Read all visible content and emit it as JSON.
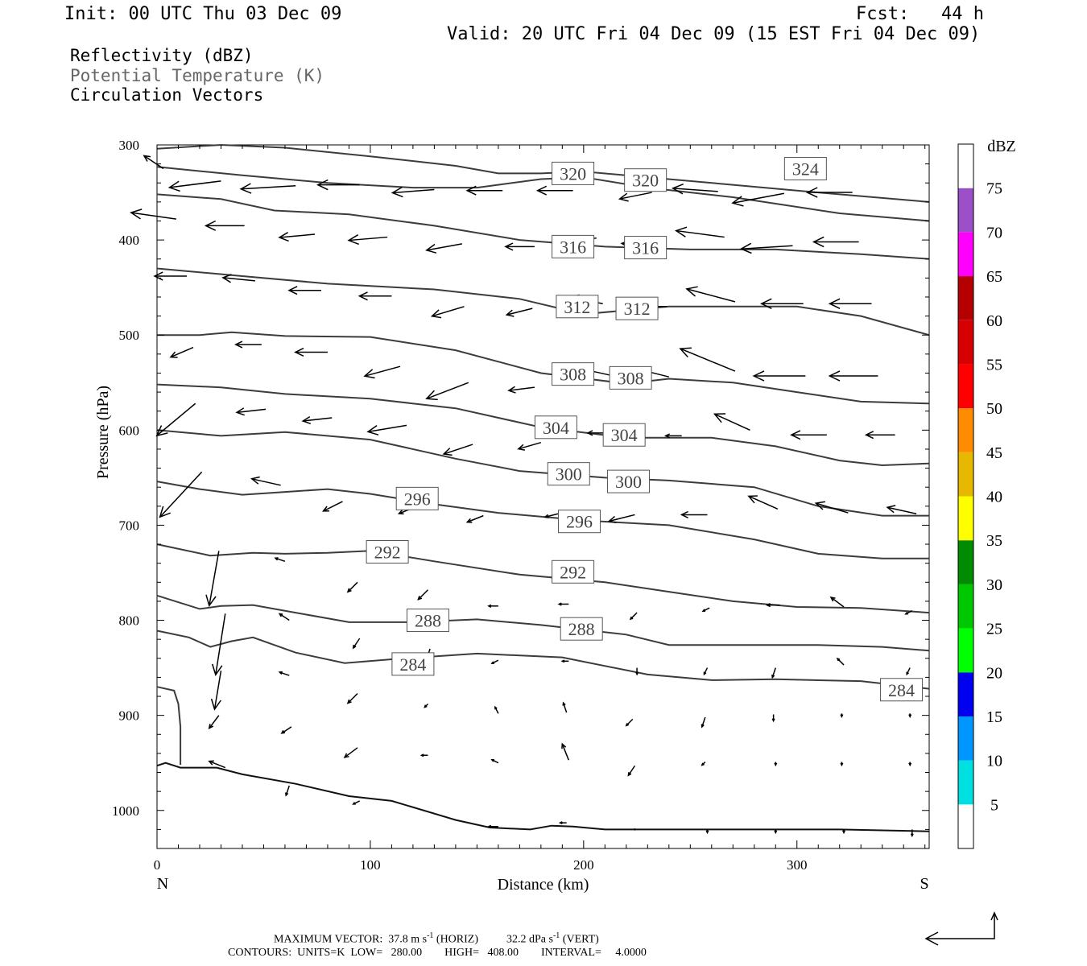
{
  "header": {
    "init": "Init: 00 UTC Thu 03 Dec 09",
    "fcst": "Fcst:   44 h",
    "valid": "Valid: 20 UTC Fri 04 Dec 09 (15 EST Fri 04 Dec 09)"
  },
  "variables": [
    "Reflectivity (dBZ)",
    "Potential Temperature (K)",
    "Circulation Vectors"
  ],
  "footer": {
    "line1_prefix": "MAXIMUM VECTOR:  37.8 m s",
    "line1_mid": " (HORIZ)          32.2 dPa s",
    "line1_suffix": " (VERT)",
    "exp": "-1",
    "line2": "CONTOURS:  UNITS=K  LOW=   280.00        HIGH=   408.00        INTERVAL=     4.0000"
  },
  "colorbar": {
    "title": "dBZ",
    "labels": [
      "5",
      "10",
      "15",
      "20",
      "25",
      "30",
      "35",
      "40",
      "45",
      "50",
      "55",
      "60",
      "65",
      "70",
      "75"
    ],
    "colors": [
      "#ffffff",
      "#00e0e0",
      "#0096ff",
      "#0000f0",
      "#00ff00",
      "#00c800",
      "#008c00",
      "#ffff00",
      "#e6b800",
      "#ff8c00",
      "#ff0000",
      "#d60000",
      "#b40000",
      "#ff00ff",
      "#9b50c8",
      "#ffffff"
    ]
  },
  "chart_data": {
    "type": "cross-section",
    "xlabel": "Distance (km)",
    "ylabel": "Pressure (hPa)",
    "xlim": [
      0,
      362
    ],
    "ylim": [
      1040,
      300
    ],
    "x_ticks": [
      "0",
      "100",
      "200",
      "300"
    ],
    "y_ticks": [
      "300",
      "400",
      "500",
      "600",
      "700",
      "800",
      "900",
      "1000"
    ],
    "x_ends": {
      "left": "N",
      "right": "S"
    },
    "contour_labels": [
      {
        "text": "320",
        "x": 195,
        "p": 330
      },
      {
        "text": "320",
        "x": 229,
        "p": 337
      },
      {
        "text": "324",
        "x": 304,
        "p": 325
      },
      {
        "text": "316",
        "x": 195,
        "p": 407
      },
      {
        "text": "316",
        "x": 229,
        "p": 408
      },
      {
        "text": "312",
        "x": 197,
        "p": 470
      },
      {
        "text": "312",
        "x": 225,
        "p": 472
      },
      {
        "text": "308",
        "x": 195,
        "p": 541
      },
      {
        "text": "308",
        "x": 222,
        "p": 545
      },
      {
        "text": "304",
        "x": 187,
        "p": 597
      },
      {
        "text": "304",
        "x": 219,
        "p": 605
      },
      {
        "text": "300",
        "x": 193,
        "p": 646
      },
      {
        "text": "300",
        "x": 221,
        "p": 654
      },
      {
        "text": "296",
        "x": 122,
        "p": 672
      },
      {
        "text": "296",
        "x": 198,
        "p": 696
      },
      {
        "text": "292",
        "x": 108,
        "p": 728
      },
      {
        "text": "292",
        "x": 195,
        "p": 749
      },
      {
        "text": "288",
        "x": 127,
        "p": 800
      },
      {
        "text": "288",
        "x": 199,
        "p": 809
      },
      {
        "text": "284",
        "x": 120,
        "p": 846
      },
      {
        "text": "284",
        "x": 349,
        "p": 873
      }
    ],
    "contours": [
      [
        [
          0,
          304
        ],
        [
          30,
          300
        ],
        [
          60,
          303
        ],
        [
          100,
          312
        ],
        [
          140,
          322
        ],
        [
          160,
          330
        ],
        [
          180,
          330
        ],
        [
          200,
          328
        ],
        [
          230,
          334
        ],
        [
          270,
          342
        ],
        [
          310,
          350
        ],
        [
          362,
          360
        ]
      ],
      [
        [
          0,
          323
        ],
        [
          40,
          332
        ],
        [
          80,
          340
        ],
        [
          120,
          345
        ],
        [
          150,
          345
        ],
        [
          180,
          336
        ],
        [
          200,
          334
        ],
        [
          230,
          345
        ],
        [
          270,
          355
        ],
        [
          320,
          372
        ],
        [
          362,
          380
        ]
      ],
      [
        [
          0,
          352
        ],
        [
          30,
          357
        ],
        [
          55,
          369
        ],
        [
          90,
          373
        ],
        [
          130,
          385
        ],
        [
          170,
          400
        ],
        [
          210,
          407
        ],
        [
          250,
          410
        ],
        [
          290,
          410
        ],
        [
          330,
          415
        ],
        [
          362,
          420
        ]
      ],
      [
        [
          0,
          430
        ],
        [
          40,
          438
        ],
        [
          80,
          446
        ],
        [
          130,
          452
        ],
        [
          170,
          462
        ],
        [
          200,
          478
        ],
        [
          240,
          470
        ],
        [
          280,
          470
        ],
        [
          300,
          470
        ],
        [
          330,
          480
        ],
        [
          362,
          500
        ]
      ],
      [
        [
          0,
          500
        ],
        [
          20,
          500
        ],
        [
          35,
          497
        ],
        [
          60,
          501
        ],
        [
          100,
          502
        ],
        [
          140,
          516
        ],
        [
          180,
          540
        ],
        [
          220,
          551
        ],
        [
          240,
          546
        ],
        [
          270,
          550
        ],
        [
          300,
          560
        ],
        [
          330,
          570
        ],
        [
          362,
          572
        ]
      ],
      [
        [
          0,
          552
        ],
        [
          30,
          555
        ],
        [
          60,
          562
        ],
        [
          100,
          567
        ],
        [
          140,
          577
        ],
        [
          180,
          597
        ],
        [
          220,
          608
        ],
        [
          260,
          608
        ],
        [
          290,
          617
        ],
        [
          320,
          632
        ],
        [
          340,
          637
        ],
        [
          362,
          635
        ]
      ],
      [
        [
          0,
          600
        ],
        [
          30,
          606
        ],
        [
          60,
          602
        ],
        [
          100,
          610
        ],
        [
          140,
          630
        ],
        [
          170,
          643
        ],
        [
          210,
          650
        ],
        [
          240,
          653
        ],
        [
          280,
          660
        ],
        [
          310,
          680
        ],
        [
          340,
          690
        ],
        [
          362,
          690
        ]
      ],
      [
        [
          0,
          654
        ],
        [
          20,
          662
        ],
        [
          40,
          668
        ],
        [
          60,
          665
        ],
        [
          80,
          662
        ],
        [
          100,
          667
        ],
        [
          130,
          678
        ],
        [
          160,
          687
        ],
        [
          200,
          695
        ],
        [
          240,
          700
        ],
        [
          280,
          715
        ],
        [
          310,
          730
        ],
        [
          340,
          735
        ],
        [
          362,
          735
        ]
      ],
      [
        [
          0,
          720
        ],
        [
          25,
          732
        ],
        [
          45,
          729
        ],
        [
          60,
          730
        ],
        [
          80,
          729
        ],
        [
          100,
          727
        ],
        [
          130,
          738
        ],
        [
          170,
          752
        ],
        [
          210,
          760
        ],
        [
          240,
          770
        ],
        [
          270,
          780
        ],
        [
          300,
          786
        ],
        [
          330,
          787
        ],
        [
          362,
          792
        ]
      ],
      [
        [
          0,
          774
        ],
        [
          20,
          788
        ],
        [
          30,
          785
        ],
        [
          45,
          784
        ],
        [
          65,
          792
        ],
        [
          90,
          802
        ],
        [
          120,
          802
        ],
        [
          150,
          799
        ],
        [
          180,
          805
        ],
        [
          220,
          815
        ],
        [
          240,
          826
        ],
        [
          270,
          826
        ],
        [
          310,
          826
        ],
        [
          340,
          828
        ],
        [
          362,
          832
        ]
      ],
      [
        [
          0,
          811
        ],
        [
          15,
          818
        ],
        [
          25,
          828
        ],
        [
          35,
          822
        ],
        [
          45,
          818
        ],
        [
          65,
          834
        ],
        [
          88,
          845
        ],
        [
          110,
          841
        ],
        [
          150,
          835
        ],
        [
          190,
          839
        ],
        [
          230,
          857
        ],
        [
          260,
          863
        ],
        [
          290,
          862
        ],
        [
          330,
          864
        ],
        [
          362,
          872
        ]
      ],
      [
        [
          0,
          870
        ],
        [
          8,
          874
        ],
        [
          10,
          888
        ],
        [
          11,
          912
        ],
        [
          11,
          952
        ]
      ],
      [
        [
          0,
          953
        ],
        [
          4,
          950
        ],
        [
          11,
          955
        ],
        [
          28,
          955
        ],
        [
          40,
          962
        ],
        [
          65,
          972
        ],
        [
          90,
          985
        ],
        [
          110,
          990
        ],
        [
          140,
          1010
        ],
        [
          156,
          1018
        ],
        [
          175,
          1020
        ],
        [
          185,
          1016
        ],
        [
          195,
          1017
        ],
        [
          210,
          1020
        ],
        [
          270,
          1020
        ],
        [
          320,
          1020
        ],
        [
          362,
          1022
        ]
      ]
    ],
    "vectors": [
      [
        3,
        325,
        -6,
        -4
      ],
      [
        30,
        338,
        -16,
        2
      ],
      [
        65,
        343,
        -17,
        1
      ],
      [
        95,
        342,
        -13,
        0
      ],
      [
        130,
        347,
        -13,
        1
      ],
      [
        162,
        348,
        -11,
        0
      ],
      [
        195,
        348,
        -11,
        0
      ],
      [
        232,
        350,
        -10,
        2
      ],
      [
        263,
        349,
        -14,
        -1
      ],
      [
        294,
        351,
        -16,
        3
      ],
      [
        326,
        350,
        -14,
        0
      ],
      [
        9,
        378,
        -14,
        -2
      ],
      [
        41,
        385,
        -12,
        0
      ],
      [
        74,
        394,
        -11,
        1
      ],
      [
        108,
        397,
        -12,
        1
      ],
      [
        143,
        404,
        -11,
        2
      ],
      [
        177,
        407,
        -9,
        0
      ],
      [
        206,
        398,
        -9,
        1
      ],
      [
        236,
        407,
        -12,
        -1
      ],
      [
        266,
        397,
        -15,
        -2
      ],
      [
        298,
        406,
        -16,
        1
      ],
      [
        329,
        402,
        -14,
        0
      ],
      [
        14,
        438,
        -10,
        0
      ],
      [
        46,
        443,
        -10,
        -1
      ],
      [
        77,
        453,
        -10,
        0
      ],
      [
        110,
        459,
        -10,
        0
      ],
      [
        144,
        470,
        -10,
        3
      ],
      [
        176,
        472,
        -8,
        2
      ],
      [
        209,
        467,
        -10,
        -2
      ],
      [
        239,
        470,
        -9,
        0
      ],
      [
        271,
        465,
        -15,
        -4
      ],
      [
        303,
        467,
        -13,
        0
      ],
      [
        335,
        467,
        -13,
        0
      ],
      [
        17,
        513,
        -7,
        3
      ],
      [
        49,
        510,
        -8,
        0
      ],
      [
        80,
        518,
        -10,
        0
      ],
      [
        114,
        533,
        -11,
        3
      ],
      [
        146,
        550,
        -13,
        5
      ],
      [
        177,
        555,
        -8,
        1
      ],
      [
        212,
        542,
        -9,
        -2
      ],
      [
        240,
        544,
        -8,
        -2
      ],
      [
        271,
        538,
        -17,
        -7
      ],
      [
        304,
        543,
        -16,
        0
      ],
      [
        338,
        543,
        -15,
        0
      ],
      [
        18,
        572,
        -12,
        10
      ],
      [
        51,
        578,
        -9,
        1
      ],
      [
        82,
        587,
        -9,
        1
      ],
      [
        117,
        595,
        -12,
        2
      ],
      [
        148,
        615,
        -9,
        3
      ],
      [
        180,
        613,
        -7,
        2
      ],
      [
        211,
        603,
        -6,
        0
      ],
      [
        246,
        606,
        -5,
        0
      ],
      [
        278,
        600,
        -11,
        -5
      ],
      [
        314,
        605,
        -11,
        0
      ],
      [
        346,
        605,
        -9,
        0
      ],
      [
        21,
        644,
        -13,
        14
      ],
      [
        58,
        658,
        -9,
        -2
      ],
      [
        87,
        675,
        -6,
        3
      ],
      [
        121,
        681,
        -5,
        2
      ],
      [
        153,
        690,
        -5,
        2
      ],
      [
        188,
        688,
        -4,
        1
      ],
      [
        224,
        689,
        -8,
        2
      ],
      [
        258,
        689,
        -8,
        0
      ],
      [
        291,
        683,
        -9,
        -4
      ],
      [
        324,
        687,
        -10,
        -3
      ],
      [
        356,
        688,
        -9,
        -2
      ],
      [
        29,
        727,
        -3,
        17
      ],
      [
        60,
        738,
        -3,
        -1
      ],
      [
        94,
        760,
        -3,
        3
      ],
      [
        127,
        768,
        -3,
        3
      ],
      [
        160,
        785,
        -3,
        0
      ],
      [
        193,
        783,
        -3,
        0
      ],
      [
        225,
        792,
        -2,
        2
      ],
      [
        259,
        787,
        -2,
        1
      ],
      [
        292,
        784,
        -4,
        0
      ],
      [
        322,
        786,
        -4,
        -3
      ],
      [
        354,
        790,
        -2,
        1
      ],
      [
        32,
        793,
        -3,
        19
      ],
      [
        62,
        800,
        -3,
        -2
      ],
      [
        95,
        819,
        -2,
        3
      ],
      [
        128,
        830,
        -1,
        3
      ],
      [
        160,
        842,
        -2,
        1
      ],
      [
        193,
        843,
        -2,
        0
      ],
      [
        225,
        850,
        0,
        2
      ],
      [
        258,
        850,
        -1,
        2
      ],
      [
        290,
        850,
        -1,
        3
      ],
      [
        322,
        847,
        -2,
        -2
      ],
      [
        353,
        850,
        -1,
        2
      ],
      [
        30,
        853,
        -2,
        12
      ],
      [
        62,
        858,
        -3,
        -1
      ],
      [
        94,
        877,
        -3,
        3
      ],
      [
        127,
        888,
        -1,
        1
      ],
      [
        160,
        898,
        -1,
        -2
      ],
      [
        192,
        897,
        -1,
        -3
      ],
      [
        223,
        904,
        -2,
        2
      ],
      [
        257,
        902,
        -1,
        3
      ],
      [
        289,
        899,
        0,
        2
      ],
      [
        321,
        898,
        0,
        1
      ],
      [
        353,
        898,
        0,
        1
      ],
      [
        29,
        900,
        -3,
        4
      ],
      [
        63,
        912,
        -3,
        2
      ],
      [
        94,
        934,
        -4,
        3
      ],
      [
        127,
        942,
        -2,
        0
      ],
      [
        160,
        950,
        -2,
        -1
      ],
      [
        193,
        947,
        -2,
        -5
      ],
      [
        224,
        953,
        -2,
        3
      ],
      [
        257,
        949,
        -1,
        1
      ],
      [
        290,
        949,
        0,
        1
      ],
      [
        321,
        949,
        0,
        1
      ],
      [
        353,
        949,
        0,
        1
      ],
      [
        32,
        955,
        -5,
        -2
      ],
      [
        62,
        974,
        -1,
        3
      ],
      [
        95,
        990,
        -2,
        1
      ],
      [
        160,
        1017,
        -3,
        0
      ],
      [
        192,
        1013,
        -2,
        0
      ],
      [
        224,
        1020,
        0,
        0
      ],
      [
        258,
        1020,
        0,
        1
      ],
      [
        290,
        1020,
        0,
        1
      ],
      [
        322,
        1020,
        0,
        1
      ],
      [
        354,
        1020,
        0,
        2
      ]
    ],
    "reference_vector": {
      "horiz": "37.8 m s-1",
      "vert": "32.2 dPa s-1"
    }
  }
}
